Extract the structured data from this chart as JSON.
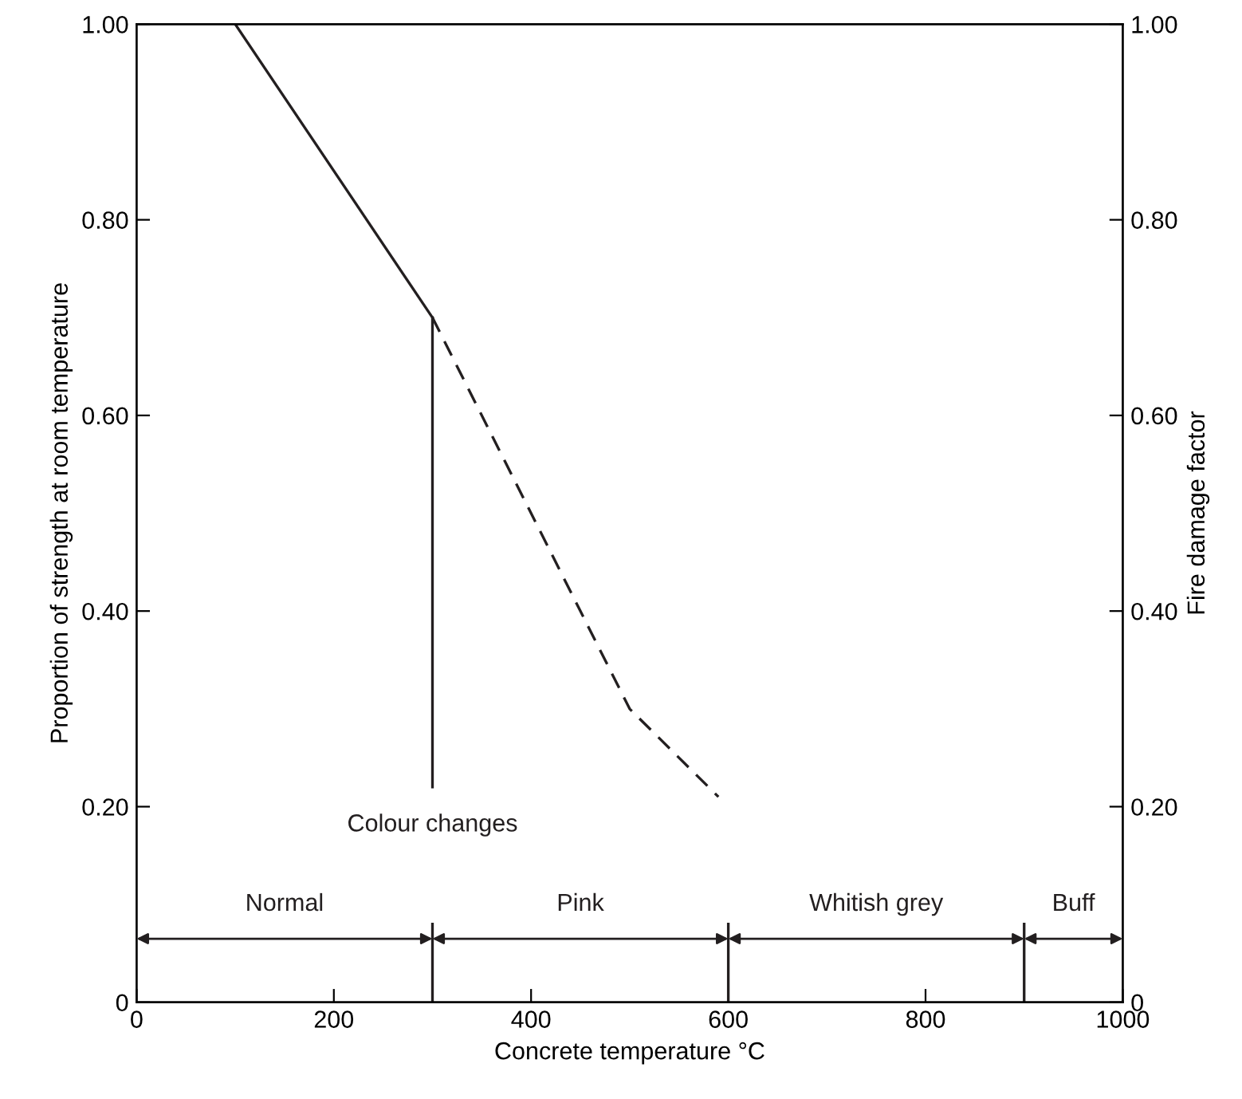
{
  "chart_data": {
    "type": "line",
    "xlabel": "Concrete temperature °C",
    "ylabel": "Proportion of strength at room temperature",
    "y2label": "Fire damage factor",
    "series": [
      {
        "x": [
          100,
          300
        ],
        "values": [
          1.0,
          0.7
        ],
        "color": "#231f20",
        "line_style": "solid"
      },
      {
        "x": [
          300,
          500,
          590
        ],
        "values": [
          0.7,
          0.3,
          0.21
        ],
        "color": "#231f20",
        "line_style": "dashed"
      },
      {
        "x": [
          300,
          300
        ],
        "values": [
          0.7,
          0.22
        ],
        "color": "#231f20",
        "line_style": "solid"
      },
      {
        "x": [
          300,
          300
        ],
        "values": [
          0,
          0.08
        ],
        "color": "#231f20",
        "line_style": "solid"
      },
      {
        "x": [
          600,
          600
        ],
        "values": [
          0,
          0.08
        ],
        "color": "#231f20",
        "line_style": "solid"
      },
      {
        "x": [
          900,
          900
        ],
        "values": [
          0,
          0.08
        ],
        "color": "#231f20",
        "line_style": "solid"
      }
    ],
    "annotations": [
      {
        "text": "Colour changes",
        "x": 300,
        "y": 0.22
      },
      "Normal",
      "Pink",
      "Whitish grey",
      "Buff"
    ],
    "xlim": [
      0,
      1000
    ],
    "xticks": [
      0,
      200,
      400,
      600,
      800,
      1000
    ],
    "ylim": [
      0,
      1.0
    ],
    "yticks": [
      0,
      {
        "value": 0.2,
        "label": "0.20"
      },
      {
        "value": 0.4,
        "label": "0.40"
      },
      {
        "value": 0.6,
        "label": "0.60"
      },
      {
        "value": 0.8,
        "label": "0.80"
      },
      {
        "value": 1.0,
        "label": "1.00"
      }
    ],
    "y2lim": [
      0,
      1.0
    ],
    "y2ticks": [
      0,
      {
        "value": 0.2,
        "label": "0.20"
      },
      {
        "value": 0.4,
        "label": "0.40"
      },
      {
        "value": 0.6,
        "label": "0.60"
      },
      {
        "value": 0.8,
        "label": "0.80"
      },
      {
        "value": 1.0,
        "label": "1.00"
      }
    ],
    "grid": false
  }
}
